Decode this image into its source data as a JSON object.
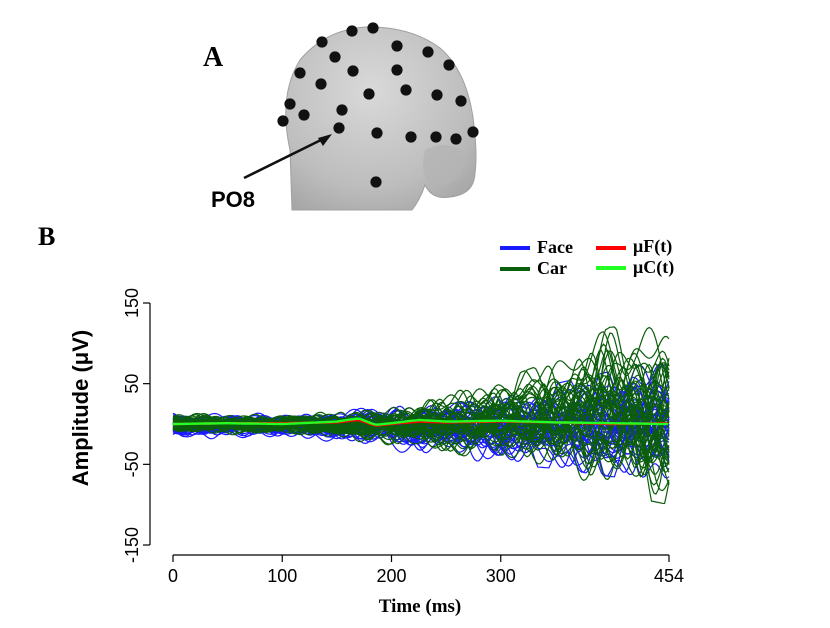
{
  "panel_a": {
    "label": "A",
    "electrode_label": "PO8"
  },
  "panel_b": {
    "label": "B"
  },
  "chart_data": {
    "type": "line",
    "title": "",
    "xlabel": "Time (ms)",
    "ylabel": "Amplitude (μV)",
    "xlim": [
      0,
      454
    ],
    "ylim": [
      -150,
      150
    ],
    "x_ticks": [
      0,
      100,
      200,
      300,
      454
    ],
    "y_ticks": [
      -150,
      -50,
      50,
      150
    ],
    "legend": {
      "placement": "top-right",
      "entries": [
        {
          "label": "Face",
          "color": "#1a1aff"
        },
        {
          "label": "Car",
          "color": "#0b5e0b"
        },
        {
          "label": "μF(t)",
          "color": "#ff0000"
        },
        {
          "label": "μC(t)",
          "color": "#22ff22"
        }
      ]
    },
    "series": [
      {
        "name": "Face",
        "color": "#1a1aff",
        "kind": "single-trial envelope",
        "x": [
          0,
          100,
          150,
          200,
          250,
          300,
          350,
          400,
          454
        ],
        "upper": [
          18,
          15,
          20,
          30,
          35,
          40,
          50,
          65,
          80
        ],
        "lower": [
          -20,
          -18,
          -25,
          -35,
          -45,
          -50,
          -55,
          -65,
          -70
        ]
      },
      {
        "name": "Car",
        "color": "#0b5e0b",
        "kind": "single-trial envelope",
        "x": [
          0,
          100,
          150,
          200,
          250,
          300,
          350,
          400,
          454
        ],
        "upper": [
          15,
          14,
          18,
          25,
          40,
          55,
          80,
          120,
          125
        ],
        "lower": [
          -15,
          -15,
          -20,
          -30,
          -40,
          -50,
          -60,
          -85,
          -100
        ]
      },
      {
        "name": "μF(t)",
        "color": "#ff0000",
        "x": [
          0,
          50,
          100,
          150,
          170,
          185,
          200,
          225,
          250,
          300,
          350,
          400,
          454
        ],
        "values": [
          0,
          1,
          1,
          2,
          5,
          -2,
          0,
          3,
          2,
          3,
          2,
          0,
          1
        ]
      },
      {
        "name": "μC(t)",
        "color": "#22ff22",
        "x": [
          0,
          50,
          100,
          150,
          170,
          185,
          200,
          225,
          250,
          300,
          350,
          400,
          454
        ],
        "values": [
          0,
          1,
          0,
          3,
          7,
          -1,
          1,
          5,
          3,
          4,
          2,
          1,
          0
        ]
      }
    ]
  }
}
